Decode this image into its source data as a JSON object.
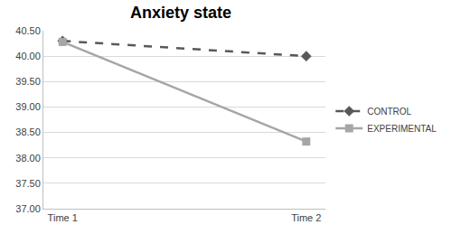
{
  "chart_data": {
    "type": "line",
    "title": "Anxiety state",
    "categories": [
      "Time 1",
      "Time 2"
    ],
    "series": [
      {
        "name": "CONTROL",
        "color": "#595959",
        "values": [
          40.3,
          40.0
        ],
        "marker": "diamond",
        "line_style": "dash"
      },
      {
        "name": "EXPERIMENTAL",
        "color": "#a6a6a6",
        "values": [
          40.28,
          38.32
        ],
        "marker": "square",
        "line_style": "solid"
      }
    ],
    "ylim": [
      37,
      40.5
    ],
    "yticks": [
      {
        "value": 37,
        "label": "37.00"
      },
      {
        "value": 37.5,
        "label": "37.50"
      },
      {
        "value": 38,
        "label": "38.00"
      },
      {
        "value": 38.5,
        "label": "38.50"
      },
      {
        "value": 39,
        "label": "39.00"
      },
      {
        "value": 39.5,
        "label": "39.50"
      },
      {
        "value": 40,
        "label": "40.00"
      },
      {
        "value": 40.5,
        "label": "40.50"
      }
    ],
    "grid": true,
    "legend": "right"
  }
}
